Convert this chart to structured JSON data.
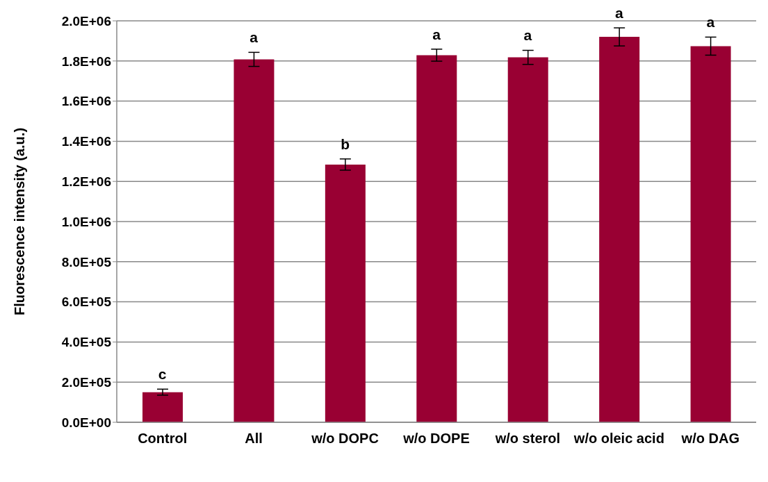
{
  "chart_data": {
    "type": "bar",
    "ylabel": "Fluorescence intensity (a.u.)",
    "categories": [
      "Control",
      "All",
      "w/o DOPC",
      "w/o DOPE",
      "w/o sterol",
      "w/o oleic acid",
      "w/o DAG"
    ],
    "values": [
      150000,
      1808000,
      1284000,
      1829000,
      1818000,
      1920000,
      1874000
    ],
    "errors": [
      15000,
      35000,
      28000,
      30000,
      35000,
      45000,
      45000
    ],
    "color": "#990033",
    "ylim": [
      0,
      2000000
    ],
    "yticks": [
      {
        "value": 0,
        "label": "0.0E+00"
      },
      {
        "value": 200000,
        "label": "2.0E+05"
      },
      {
        "value": 400000,
        "label": "4.0E+05"
      },
      {
        "value": 600000,
        "label": "6.0E+05"
      },
      {
        "value": 800000,
        "label": "8.0E+05"
      },
      {
        "value": 1000000,
        "label": "1.0E+06"
      },
      {
        "value": 1200000,
        "label": "1.2E+06"
      },
      {
        "value": 1400000,
        "label": "1.4E+06"
      },
      {
        "value": 1600000,
        "label": "1.6E+06"
      },
      {
        "value": 1800000,
        "label": "1.8E+06"
      },
      {
        "value": 2000000,
        "label": "2.0E+06"
      }
    ],
    "grid": "y",
    "legend": false,
    "annotations": [
      {
        "text": "c",
        "x": "Control",
        "y": 165000
      },
      {
        "text": "a",
        "x": "All",
        "y": 1843000
      },
      {
        "text": "b",
        "x": "w/o DOPC",
        "y": 1312000
      },
      {
        "text": "a",
        "x": "w/o DOPE",
        "y": 1859000
      },
      {
        "text": "a",
        "x": "w/o sterol",
        "y": 1853000
      },
      {
        "text": "a",
        "x": "w/o oleic acid",
        "y": 1965000
      },
      {
        "text": "a",
        "x": "w/o DAG",
        "y": 1919000
      }
    ]
  }
}
